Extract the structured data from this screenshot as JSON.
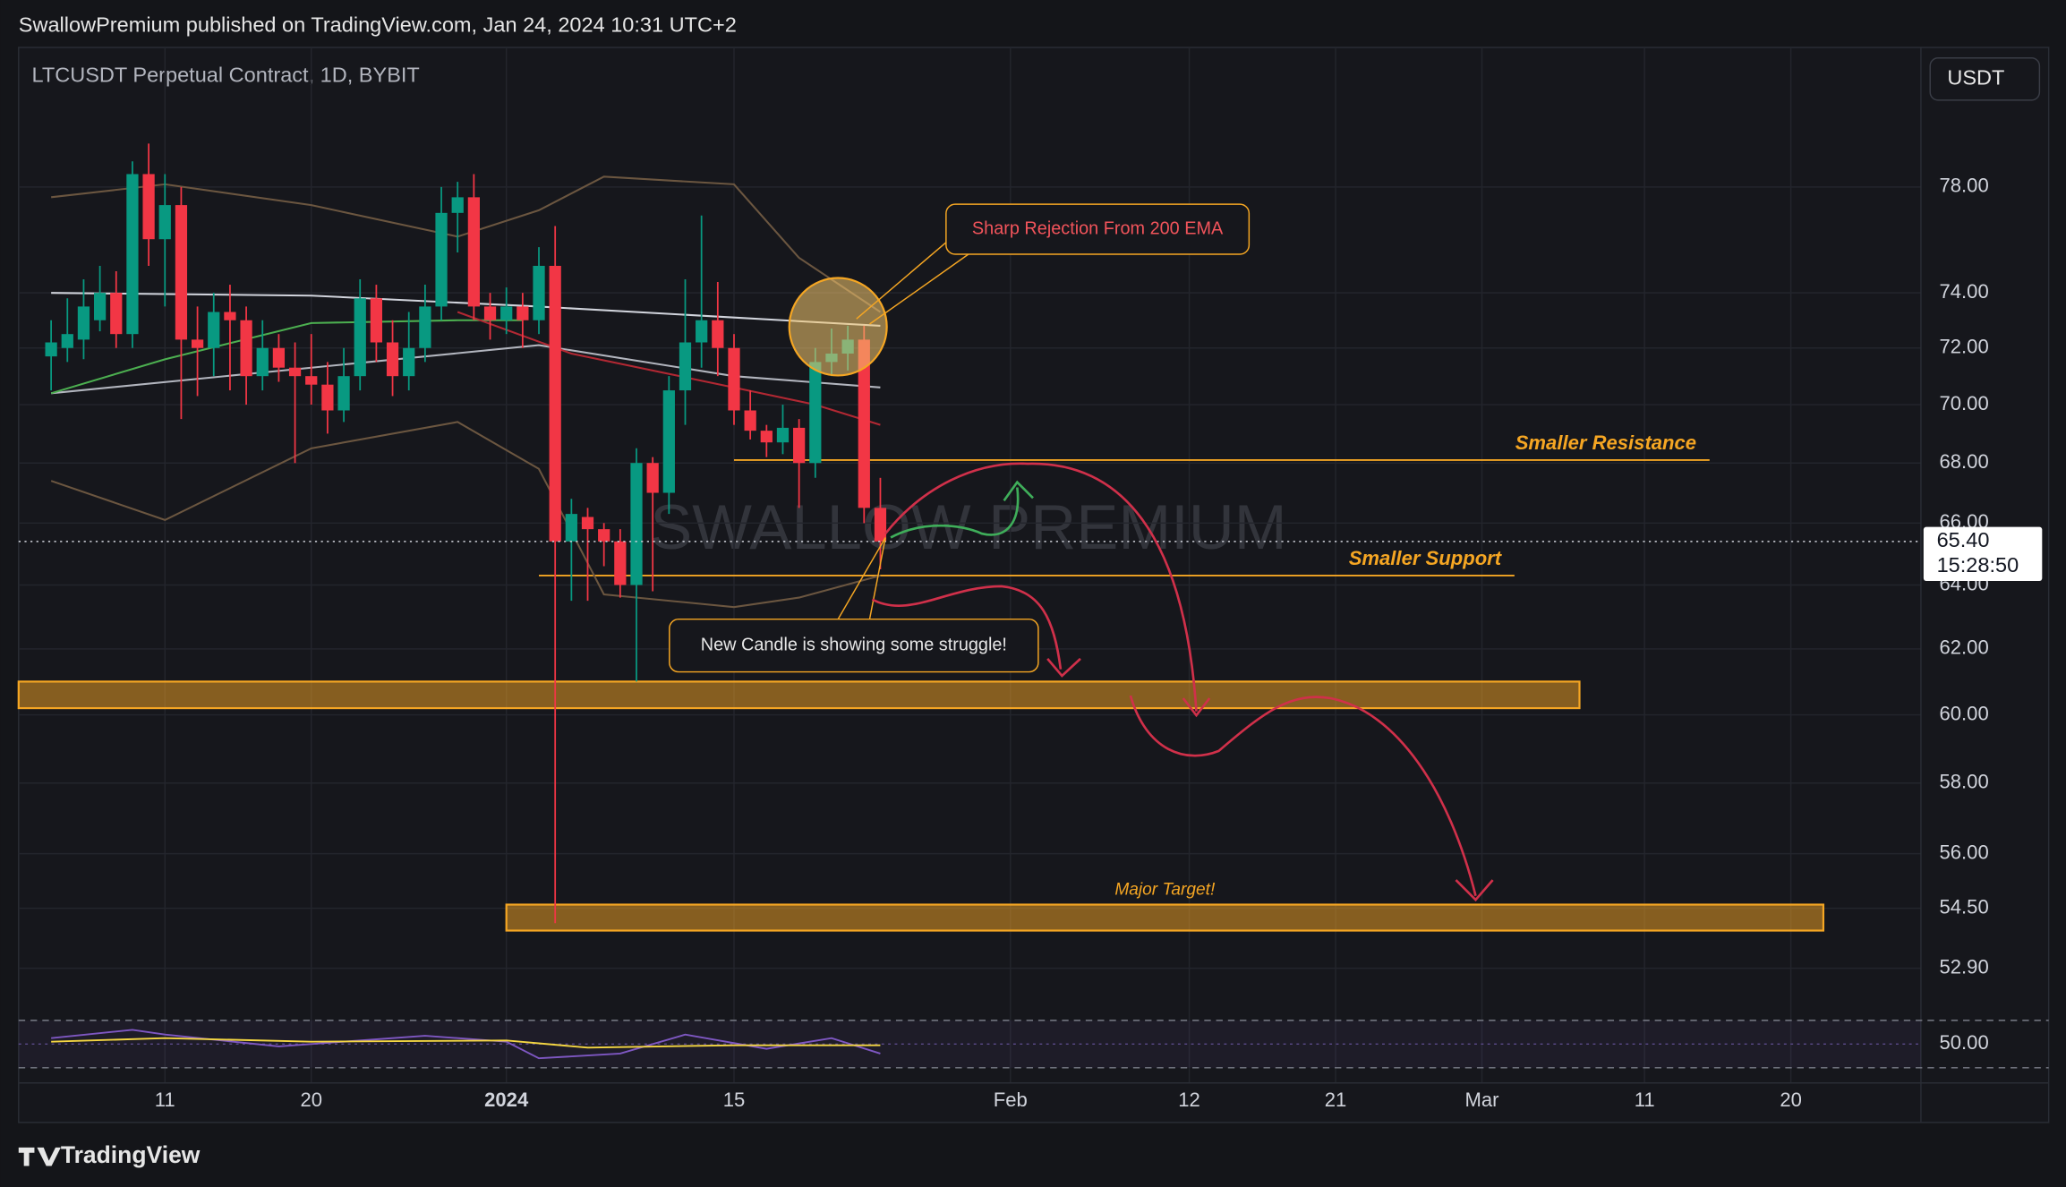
{
  "header": "SwallowPremium published on TradingView.com, Jan 24, 2024 10:31 UTC+2",
  "footer": "TradingView",
  "chart_data": {
    "type": "candlestick",
    "title": "LTCUSDT Perpetual Contract, 1D, BYBIT",
    "currency": "USDT",
    "watermark": "SWALLOW PREMIUM",
    "up_color": "#089981",
    "down_color": "#f23645",
    "log_scale": true,
    "grid": true,
    "ylim": [
      51.7,
      83.6
    ],
    "yticks": [
      {
        "value": 78,
        "label": "78.00"
      },
      {
        "value": 74,
        "label": "74.00"
      },
      {
        "value": 72,
        "label": "72.00"
      },
      {
        "value": 70,
        "label": "70.00"
      },
      {
        "value": 68,
        "label": "68.00"
      },
      {
        "value": 66,
        "label": "66.00"
      },
      {
        "value": 64,
        "label": "64.00"
      },
      {
        "value": 62,
        "label": "62.00"
      },
      {
        "value": 60,
        "label": "60.00"
      },
      {
        "value": 58,
        "label": "58.00"
      },
      {
        "value": 56,
        "label": "56.00"
      },
      {
        "value": 54.5,
        "label": "54.50"
      },
      {
        "value": 52.9,
        "label": "52.90"
      }
    ],
    "xlim": [
      "2023-12-02",
      "2024-03-28"
    ],
    "xticks": [
      {
        "value": "2023-12-11",
        "label": "11"
      },
      {
        "value": "2023-12-20",
        "label": "20"
      },
      {
        "value": "2024-01-01",
        "label": "2024"
      },
      {
        "value": "2024-01-15",
        "label": "15"
      },
      {
        "value": "2024-02-01",
        "label": "Feb"
      },
      {
        "value": "2024-02-12",
        "label": "12"
      },
      {
        "value": "2024-02-21",
        "label": "21"
      },
      {
        "value": "2024-03-01",
        "label": "Mar"
      },
      {
        "value": "2024-03-11",
        "label": "11"
      },
      {
        "value": "2024-03-20",
        "label": "20"
      }
    ],
    "x": [
      "2023-12-04",
      "2023-12-05",
      "2023-12-06",
      "2023-12-07",
      "2023-12-08",
      "2023-12-09",
      "2023-12-10",
      "2023-12-11",
      "2023-12-12",
      "2023-12-13",
      "2023-12-14",
      "2023-12-15",
      "2023-12-16",
      "2023-12-17",
      "2023-12-18",
      "2023-12-19",
      "2023-12-20",
      "2023-12-21",
      "2023-12-22",
      "2023-12-23",
      "2023-12-24",
      "2023-12-25",
      "2023-12-26",
      "2023-12-27",
      "2023-12-28",
      "2023-12-29",
      "2023-12-30",
      "2023-12-31",
      "2024-01-01",
      "2024-01-02",
      "2024-01-03",
      "2024-01-04",
      "2024-01-05",
      "2024-01-06",
      "2024-01-07",
      "2024-01-08",
      "2024-01-09",
      "2024-01-10",
      "2024-01-11",
      "2024-01-12",
      "2024-01-13",
      "2024-01-14",
      "2024-01-15",
      "2024-01-16",
      "2024-01-17",
      "2024-01-18",
      "2024-01-19",
      "2024-01-20",
      "2024-01-21",
      "2024-01-22",
      "2024-01-23",
      "2024-01-24"
    ],
    "open": [
      71.7,
      72,
      72.3,
      73,
      74,
      72.5,
      78.5,
      76,
      77.3,
      72.3,
      72,
      73.3,
      73,
      71,
      72,
      71.3,
      71,
      70.7,
      69.8,
      71,
      73.8,
      72.2,
      71,
      72,
      73.5,
      77,
      77.6,
      73.5,
      73,
      73.5,
      73,
      75,
      65.4,
      66.2,
      65.8,
      65.4,
      64,
      68,
      67,
      70.5,
      72.2,
      73,
      72,
      69.8,
      69.1,
      68.7,
      69.2,
      68,
      71.5,
      71.8,
      72.3,
      66.5
    ],
    "high": [
      73,
      73.8,
      74.5,
      75,
      74.8,
      79,
      79.7,
      78.5,
      78,
      73.5,
      74,
      74.3,
      73.5,
      73,
      72.5,
      72.2,
      72.5,
      71.5,
      72,
      74.5,
      74.3,
      73,
      73.3,
      74.3,
      78,
      78.2,
      78.5,
      74,
      74.2,
      74,
      75.7,
      76.5,
      66.8,
      66.5,
      66,
      65.8,
      68.5,
      68.2,
      71,
      74.5,
      76.9,
      74.4,
      72.5,
      70.5,
      69.3,
      70,
      69.5,
      72,
      72.7,
      72.8,
      72.8,
      67.5
    ],
    "low": [
      70.5,
      71.5,
      71.6,
      72.6,
      72,
      72,
      75,
      73.5,
      69.5,
      70.3,
      71,
      70.5,
      70,
      70.5,
      70.8,
      68,
      70,
      69,
      69.4,
      70.5,
      71.5,
      70.3,
      70.5,
      71.5,
      73,
      75.5,
      73,
      72.3,
      72.5,
      72,
      72.5,
      54.1,
      63.5,
      63.5,
      64.6,
      63.6,
      61,
      63.8,
      66.3,
      69.3,
      71.3,
      71,
      69.3,
      68.8,
      68.2,
      68.3,
      66.5,
      67.5,
      71,
      71.2,
      66,
      64.5
    ],
    "close": [
      72.2,
      72.5,
      73.5,
      74,
      72.5,
      78.5,
      76,
      77.3,
      72.3,
      72,
      73.3,
      73,
      71,
      72,
      71.3,
      71,
      70.7,
      69.8,
      71,
      73.8,
      72.2,
      71,
      72,
      73.5,
      77,
      77.6,
      73.5,
      73,
      73.5,
      73,
      75,
      65.4,
      66.3,
      65.8,
      65.4,
      64,
      68,
      67,
      70.5,
      72.2,
      73,
      72,
      69.8,
      69.1,
      68.7,
      69.2,
      68,
      71.5,
      71.8,
      72.3,
      66.5,
      65.4
    ],
    "last_price": {
      "value": 65.4,
      "label": "65.40"
    },
    "countdown": "15:28:50",
    "overlays": [
      {
        "color": "#6b5640",
        "x": [
          "2023-12-04",
          "2023-12-11",
          "2023-12-20",
          "2023-12-29",
          "2024-01-03",
          "2024-01-07",
          "2024-01-15",
          "2024-01-19",
          "2024-01-24"
        ],
        "values": [
          77.6,
          78.1,
          77.3,
          76.1,
          77.1,
          78.4,
          78.1,
          75.3,
          73.3
        ]
      },
      {
        "color": "#6b5640",
        "x": [
          "2023-12-04",
          "2023-12-11",
          "2023-12-20",
          "2023-12-29",
          "2024-01-03",
          "2024-01-07",
          "2024-01-15",
          "2024-01-19",
          "2024-01-24"
        ],
        "values": [
          67.4,
          66.1,
          68.5,
          69.4,
          67.8,
          63.7,
          63.3,
          63.6,
          64.3
        ]
      },
      {
        "color": "#d1d4dc",
        "x": [
          "2023-12-04",
          "2023-12-20",
          "2024-01-03",
          "2024-01-15",
          "2024-01-24"
        ],
        "values": [
          74.0,
          73.9,
          73.5,
          73.1,
          72.8
        ]
      },
      {
        "color": "#b2b5be",
        "x": [
          "2023-12-04",
          "2023-12-20",
          "2024-01-03",
          "2024-01-15",
          "2024-01-24"
        ],
        "values": [
          70.4,
          71.3,
          72.1,
          71.0,
          70.6
        ]
      },
      {
        "color": "#4caf50",
        "x": [
          "2023-12-04",
          "2023-12-11",
          "2023-12-20",
          "2023-12-29",
          "2024-01-02"
        ],
        "values": [
          70.4,
          71.6,
          72.9,
          73.0,
          73.0
        ]
      },
      {
        "color": "#b22833",
        "x": [
          "2023-12-29",
          "2024-01-05",
          "2024-01-15",
          "2024-01-20",
          "2024-01-24"
        ],
        "values": [
          73.3,
          71.8,
          70.6,
          70.0,
          69.3
        ]
      }
    ],
    "levels": [
      {
        "label": "Smaller Resistance",
        "value": 68.1,
        "from": "2024-01-15",
        "to": "2024-03-15",
        "color": "#f5a623"
      },
      {
        "label": "Smaller Support",
        "value": 64.3,
        "from": "2024-01-03",
        "to": "2024-03-03",
        "color": "#f5a623"
      }
    ],
    "zones": [
      {
        "low": 60.2,
        "high": 61.0,
        "from": "2023-12-02",
        "to": "2024-03-07",
        "color": "#f5a623"
      },
      {
        "label": "Major Target!",
        "low": 53.9,
        "high": 54.6,
        "from": "2024-01-01",
        "to": "2024-03-22",
        "color": "#f5a623"
      }
    ],
    "annotations": [
      "Sharp Rejection From 200 EMA",
      "New Candle is showing some struggle!"
    ],
    "rsi": {
      "ylim": [
        25,
        75
      ],
      "bands": [
        30,
        70
      ],
      "yticks": [
        {
          "value": 50,
          "label": "50.00"
        }
      ],
      "lines": [
        {
          "color": "#7e57c2",
          "x": [
            "2023-12-04",
            "2023-12-09",
            "2023-12-11",
            "2023-12-18",
            "2023-12-27",
            "2024-01-01",
            "2024-01-03",
            "2024-01-08",
            "2024-01-12",
            "2024-01-17",
            "2024-01-21",
            "2024-01-24"
          ],
          "values": [
            55,
            62,
            58,
            48,
            57,
            52,
            38,
            42,
            58,
            46,
            55,
            42
          ]
        },
        {
          "color": "#f5d742",
          "x": [
            "2023-12-04",
            "2023-12-11",
            "2023-12-20",
            "2024-01-01",
            "2024-01-06",
            "2024-01-15",
            "2024-01-24"
          ],
          "values": [
            52,
            55,
            52,
            53,
            47,
            49,
            49
          ]
        }
      ]
    }
  }
}
